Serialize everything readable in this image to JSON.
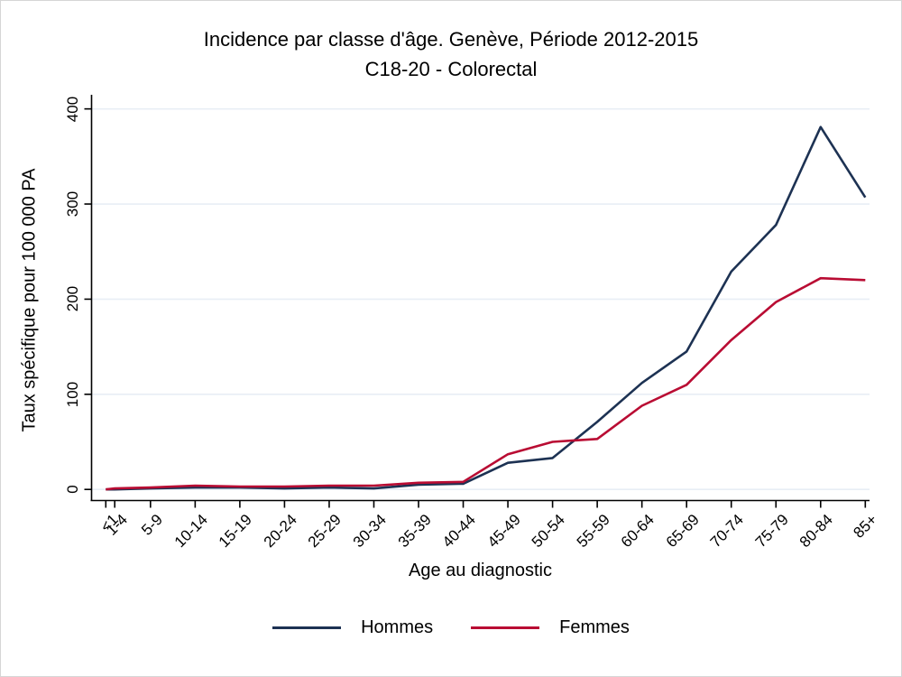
{
  "title": {
    "line1": "Incidence par classe d'âge. Genève, Période 2012-2015",
    "line2": "C18-20 - Colorectal"
  },
  "axes": {
    "y_label": "Taux spécifique pour 100 000 PA",
    "x_label": "Age au diagnostic"
  },
  "legend": {
    "items": [
      {
        "label": "Hommes",
        "color": "#1d3253"
      },
      {
        "label": "Femmes",
        "color": "#b90c33"
      }
    ]
  },
  "chart_data": {
    "type": "line",
    "title": "Incidence par classe d'âge. Genève, Période 2012-2015",
    "subtitle": "C18-20 - Colorectal",
    "xlabel": "Age au diagnostic",
    "ylabel": "Taux spécifique pour 100 000 PA",
    "ylim": [
      0,
      400
    ],
    "y_ticks": [
      0,
      100,
      200,
      300,
      400
    ],
    "grid": true,
    "legend_position": "bottom",
    "x_axis_note": "linear in age; tick at lower bound of each age class",
    "categories": [
      "<1",
      "1-4",
      "5-9",
      "10-14",
      "15-19",
      "20-24",
      "25-29",
      "30-34",
      "35-39",
      "40-44",
      "45-49",
      "50-54",
      "55-59",
      "60-64",
      "65-69",
      "70-74",
      "75-79",
      "80-84",
      "85+"
    ],
    "x_numeric": [
      0,
      1,
      5,
      10,
      15,
      20,
      25,
      30,
      35,
      40,
      45,
      50,
      55,
      60,
      65,
      70,
      75,
      80,
      85
    ],
    "series": [
      {
        "name": "Hommes",
        "color": "#1d3253",
        "values": [
          0,
          0,
          1,
          2,
          2,
          1,
          2,
          1,
          5,
          6,
          28,
          33,
          71,
          112,
          145,
          229,
          278,
          381,
          307
        ]
      },
      {
        "name": "Femmes",
        "color": "#b90c33",
        "values": [
          0,
          1,
          2,
          4,
          3,
          3,
          4,
          4,
          7,
          8,
          37,
          50,
          53,
          88,
          110,
          157,
          197,
          222,
          220
        ]
      }
    ],
    "colors": {
      "grid": "#e8eef5",
      "axis": "#000000"
    }
  }
}
